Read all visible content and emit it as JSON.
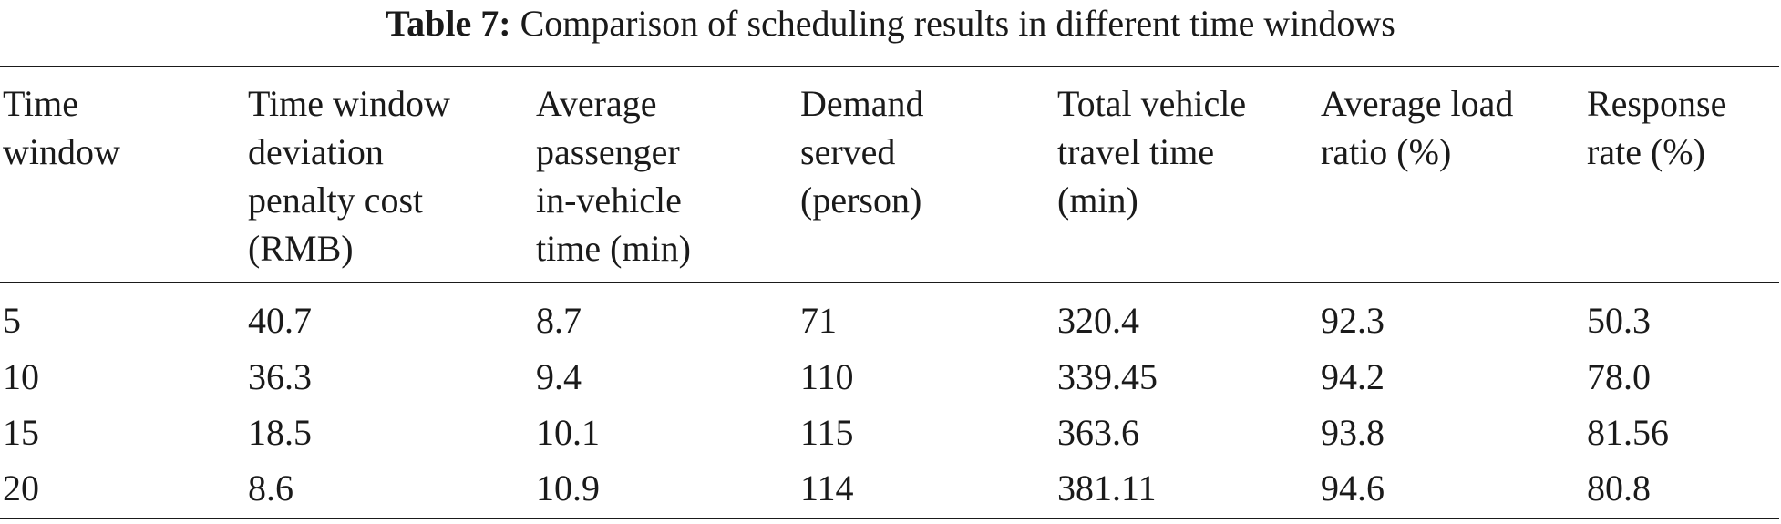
{
  "caption": {
    "label": "Table 7:",
    "text": " Comparison of scheduling results in different time windows"
  },
  "table": {
    "columns": [
      "Time\nwindow",
      "Time window\ndeviation\npenalty cost\n(RMB)",
      "Average\npassenger\nin-vehicle\ntime (min)",
      "Demand\nserved\n(person)",
      "Total vehicle\ntravel time\n(min)",
      "Average load\nratio (%)",
      "Response\nrate (%)"
    ],
    "rows": [
      [
        "5",
        "40.7",
        "8.7",
        "71",
        "320.4",
        "92.3",
        "50.3"
      ],
      [
        "10",
        "36.3",
        "9.4",
        "110",
        "339.45",
        "94.2",
        "78.0"
      ],
      [
        "15",
        "18.5",
        "10.1",
        "115",
        "363.6",
        "93.8",
        "81.56"
      ],
      [
        "20",
        "8.6",
        "10.9",
        "114",
        "381.11",
        "94.6",
        "80.8"
      ]
    ]
  }
}
